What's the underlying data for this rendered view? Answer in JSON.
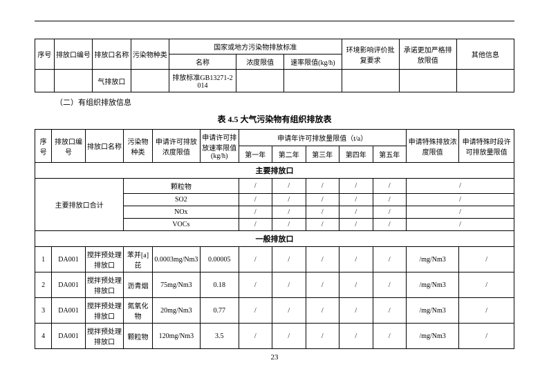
{
  "topTable": {
    "headers": {
      "seq": "序号",
      "outletId": "排放口编号",
      "outletName": "排放口名称",
      "pollutantType": "污染物种类",
      "standardGroup": "国家或地方污染物排放标准",
      "standardName": "名称",
      "concLimit": "浓度限值",
      "rateLimit": "速率限值(kg/h)",
      "envReq": "环境影响评价批复要求",
      "commitLimit": "承诺更加严格排放限值",
      "otherInfo": "其他信息"
    },
    "row": {
      "outletName": "气排放口",
      "standardName": "排放标准GB13271-2014"
    }
  },
  "sectionLabel": "（二）有组织排放信息",
  "tableTitle": "表 4.5  大气污染物有组织排放表",
  "mainTable": {
    "headers": {
      "seq": "序号",
      "outletId": "排放口编号",
      "outletName": "排放口名称",
      "pollutantType": "污染物种类",
      "applyConcLimit": "申请许可排放浓度限值",
      "applyRateLimit": "申请许可排放速率限值(kg/h)",
      "annualGroup": "申请年许可排放量限值（t/a）",
      "y1": "第一年",
      "y2": "第二年",
      "y3": "第三年",
      "y4": "第四年",
      "y5": "第五年",
      "specialConc": "申请特殊排放浓度限值",
      "specialPeriod": "申请特殊时段许可排放量限值"
    },
    "mainSection": "主要排放口",
    "totalLabel": "主要排放口合计",
    "totals": [
      {
        "name": "颗粒物",
        "v": [
          "/",
          "/",
          "/",
          "/",
          "/",
          "/"
        ]
      },
      {
        "name": "SO2",
        "v": [
          "/",
          "/",
          "/",
          "/",
          "/",
          "/"
        ]
      },
      {
        "name": "NOx",
        "v": [
          "/",
          "/",
          "/",
          "/",
          "/",
          "/"
        ]
      },
      {
        "name": "VOCs",
        "v": [
          "/",
          "/",
          "/",
          "/",
          "/",
          "/"
        ]
      }
    ],
    "genSection": "一般排放口",
    "rows": [
      {
        "seq": "1",
        "id": "DA001",
        "name": "搅拌预处理排放口",
        "type": "苯并[a]芘",
        "conc": "0.0003mg/Nm3",
        "rate": "0.00005",
        "y": [
          "/",
          "/",
          "/",
          "/",
          "/"
        ],
        "sp": "/mg/Nm3",
        "pp": "/"
      },
      {
        "seq": "2",
        "id": "DA001",
        "name": "搅拌预处理排放口",
        "type": "沥青烟",
        "conc": "75mg/Nm3",
        "rate": "0.18",
        "y": [
          "/",
          "/",
          "/",
          "/",
          "/"
        ],
        "sp": "/mg/Nm3",
        "pp": "/"
      },
      {
        "seq": "3",
        "id": "DA001",
        "name": "搅拌预处理排放口",
        "type": "氮氧化物",
        "conc": "20mg/Nm3",
        "rate": "0.77",
        "y": [
          "/",
          "/",
          "/",
          "/",
          "/"
        ],
        "sp": "/mg/Nm3",
        "pp": "/"
      },
      {
        "seq": "4",
        "id": "DA001",
        "name": "搅拌预处理排放口",
        "type": "颗粒物",
        "conc": "120mg/Nm3",
        "rate": "3.5",
        "y": [
          "/",
          "/",
          "/",
          "/",
          "/"
        ],
        "sp": "/mg/Nm3",
        "pp": "/"
      }
    ]
  },
  "pageNumber": "23"
}
